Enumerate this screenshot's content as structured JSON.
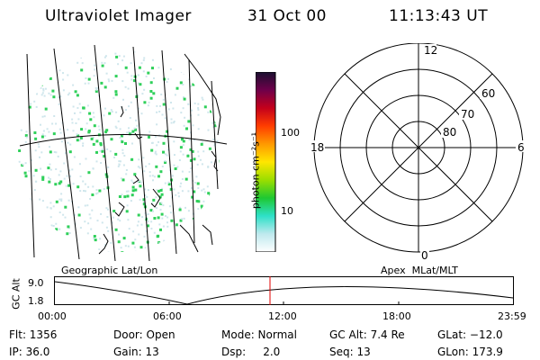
{
  "header": {
    "instrument": "Ultraviolet Imager",
    "date": "31 Oct 00",
    "time": "11:13:43 UT"
  },
  "map_panel": {
    "caption": "Geographic Lat/Lon",
    "colors": {
      "map_lines": "#000000",
      "dots": "#2fd05a",
      "speckle": "#cfe6ec"
    }
  },
  "colorbar": {
    "unit_label": "photon cm⁻²s⁻¹",
    "ticks": [
      "100",
      "10"
    ],
    "colors_bottom_to_top": [
      "#ffffff",
      "#bfe9ee",
      "#2ee0c8",
      "#1ec832",
      "#9bde00",
      "#ffe600",
      "#ff9900",
      "#ff3d00",
      "#c4001b",
      "#6e004a",
      "#1a1030"
    ]
  },
  "polar_panel": {
    "caption": "Apex  MLat/MLT",
    "mlt_labels": {
      "top": "12",
      "bottom": "0",
      "left": "18",
      "right": "6"
    },
    "mlat_labels": [
      "60",
      "70",
      "80"
    ]
  },
  "altitude_plot": {
    "y_title": "GC Alt",
    "y_ticks": [
      "9.0",
      "1.8"
    ],
    "x_ticks": [
      "00:00",
      "06:00",
      "12:00",
      "18:00",
      "23:59"
    ],
    "marker_color": "#e00000"
  },
  "info_rows": [
    [
      "Flt: 1356",
      "Door: Open",
      "Mode: Normal",
      "GC Alt: 7.4 Re",
      "GLat: −12.0"
    ],
    [
      "IP: 36.0",
      "Gain: 13",
      "Dsp:     2.0",
      "Seq: 13",
      "GLon: 173.9"
    ]
  ]
}
